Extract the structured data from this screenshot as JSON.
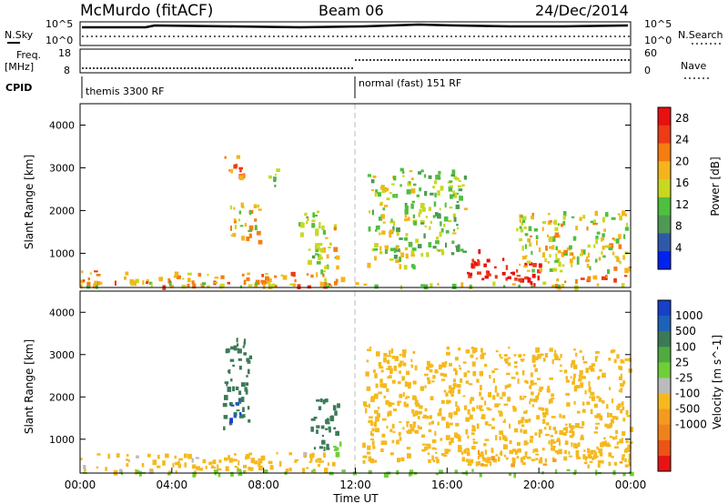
{
  "header": {
    "station": "McMurdo (fitACF)",
    "beam": "Beam 06",
    "date": "24/Dec/2014"
  },
  "top_panel": {
    "left_label": "N.Sky",
    "right_label": "N.Search",
    "y_ticks": [
      "10^5",
      "10^0"
    ],
    "freq_label_1": "Freq.",
    "freq_label_2": "[MHz]",
    "freq_ticks": [
      "18",
      "8"
    ],
    "nave_label": "Nave",
    "nave_ticks": [
      "60",
      "0"
    ],
    "cpid_label": "CPID",
    "cpid_modes": [
      "themis 3300 RF",
      "normal (fast) 151 RF"
    ]
  },
  "colors": {
    "power": [
      "#0022ee",
      "#2f59a8",
      "#4e9a53",
      "#4fbf3e",
      "#c8d820",
      "#f5b41c",
      "#f57d12",
      "#ee3a16",
      "#e81010"
    ],
    "velocity": [
      "#1840c8",
      "#1d61b9",
      "#3c7a57",
      "#4faa3f",
      "#70cf38",
      "#bbbbbb",
      "#f5b91e",
      "#f49a20",
      "#f0821c",
      "#ec5417",
      "#e81414"
    ]
  },
  "chart_data": [
    {
      "type": "heatmap",
      "title": "Power",
      "xlabel": "",
      "ylabel": "Slant Range [km]",
      "xlim": [
        "00:00",
        "24:00"
      ],
      "ylim": [
        200,
        4500
      ],
      "y_ticks": [
        "1000",
        "2000",
        "3000",
        "4000"
      ],
      "colorbar": {
        "label": "Power [dB]",
        "ticks": [
          "4",
          "8",
          "12",
          "16",
          "20",
          "24",
          "28"
        ],
        "range": [
          0,
          30
        ]
      },
      "regions": [
        {
          "t": [
            0.0,
            11.5
          ],
          "r": [
            250,
            600
          ],
          "value": 20
        },
        {
          "t": [
            0.0,
            24.0
          ],
          "r": [
            250,
            350
          ],
          "value": 16
        },
        {
          "t": [
            6.2,
            7.2
          ],
          "r": [
            2800,
            3300
          ],
          "value": 22
        },
        {
          "t": [
            6.5,
            7.8
          ],
          "r": [
            1200,
            2200
          ],
          "value": 18
        },
        {
          "t": [
            8.2,
            8.6
          ],
          "r": [
            2600,
            3000
          ],
          "value": 12
        },
        {
          "t": [
            9.5,
            10.5
          ],
          "r": [
            800,
            2000
          ],
          "value": 12
        },
        {
          "t": [
            10.2,
            11.2
          ],
          "r": [
            600,
            1800
          ],
          "value": 16
        },
        {
          "t": [
            12.5,
            14.5
          ],
          "r": [
            700,
            3000
          ],
          "value": 14
        },
        {
          "t": [
            14.5,
            16.8
          ],
          "r": [
            1000,
            3000
          ],
          "value": 12
        },
        {
          "t": [
            16.8,
            20.0
          ],
          "r": [
            300,
            900
          ],
          "value": 28
        },
        {
          "t": [
            16.8,
            17.4
          ],
          "r": [
            700,
            1100
          ],
          "value": 26
        },
        {
          "t": [
            19.0,
            24.0
          ],
          "r": [
            600,
            2000
          ],
          "value": 16
        },
        {
          "t": [
            20.0,
            24.0
          ],
          "r": [
            350,
            500
          ],
          "value": 22
        }
      ]
    },
    {
      "type": "heatmap",
      "title": "Velocity",
      "xlabel": "Time UT",
      "ylabel": "Slant Range [km]",
      "xlim": [
        "00:00",
        "24:00"
      ],
      "x_ticks": [
        "00:00",
        "04:00",
        "08:00",
        "12:00",
        "16:00",
        "20:00",
        "00:00"
      ],
      "ylim": [
        200,
        4500
      ],
      "y_ticks": [
        "1000",
        "2000",
        "3000",
        "4000"
      ],
      "colorbar": {
        "label": "Velocity [m s^-1]",
        "ticks": [
          "1000",
          "500",
          "100",
          "25",
          "-25",
          "-100",
          "-500",
          "-1000"
        ]
      },
      "regions": [
        {
          "t": [
            0.0,
            11.0
          ],
          "r": [
            250,
            700
          ],
          "value": -150
        },
        {
          "t": [
            0.0,
            24.0
          ],
          "r": [
            200,
            300
          ],
          "value": 0
        },
        {
          "t": [
            6.2,
            7.4
          ],
          "r": [
            1300,
            3400
          ],
          "value": 300
        },
        {
          "t": [
            6.5,
            7.0
          ],
          "r": [
            1500,
            2200
          ],
          "value": 800
        },
        {
          "t": [
            10.0,
            11.2
          ],
          "r": [
            800,
            2000
          ],
          "value": 300
        },
        {
          "t": [
            11.0,
            11.5
          ],
          "r": [
            700,
            1300
          ],
          "value": 0
        },
        {
          "t": [
            12.3,
            24.0
          ],
          "r": [
            500,
            3200
          ],
          "value": -300
        },
        {
          "t": [
            16.5,
            24.0
          ],
          "r": [
            400,
            800
          ],
          "value": -400
        }
      ]
    }
  ]
}
